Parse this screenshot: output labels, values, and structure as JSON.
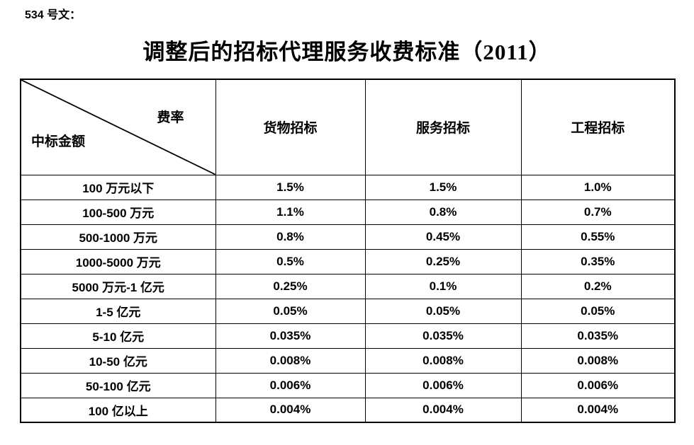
{
  "page": {
    "doc_label": "534 号文：",
    "title": "调整后的招标代理服务收费标准（2011）"
  },
  "table": {
    "corner": {
      "top_right": "费率",
      "bottom_left": "中标金额"
    },
    "columns": [
      "货物招标",
      "服务招标",
      "工程招标"
    ],
    "rows": [
      {
        "label": "100 万元以下",
        "values": [
          "1.5%",
          "1.5%",
          "1.0%"
        ]
      },
      {
        "label": "100-500 万元",
        "values": [
          "1.1%",
          "0.8%",
          "0.7%"
        ]
      },
      {
        "label": "500-1000 万元",
        "values": [
          "0.8%",
          "0.45%",
          "0.55%"
        ]
      },
      {
        "label": "1000-5000 万元",
        "values": [
          "0.5%",
          "0.25%",
          "0.35%"
        ]
      },
      {
        "label": "5000 万元-1 亿元",
        "values": [
          "0.25%",
          "0.1%",
          "0.2%"
        ]
      },
      {
        "label": "1-5 亿元",
        "values": [
          "0.05%",
          "0.05%",
          "0.05%"
        ]
      },
      {
        "label": "5-10 亿元",
        "values": [
          "0.035%",
          "0.035%",
          "0.035%"
        ]
      },
      {
        "label": "10-50 亿元",
        "values": [
          "0.008%",
          "0.008%",
          "0.008%"
        ]
      },
      {
        "label": "50-100 亿元",
        "values": [
          "0.006%",
          "0.006%",
          "0.006%"
        ]
      },
      {
        "label": "100 亿以上",
        "values": [
          "0.004%",
          "0.004%",
          "0.004%"
        ]
      }
    ]
  },
  "colors": {
    "text": "#000000",
    "border": "#000000",
    "background": "#ffffff"
  }
}
